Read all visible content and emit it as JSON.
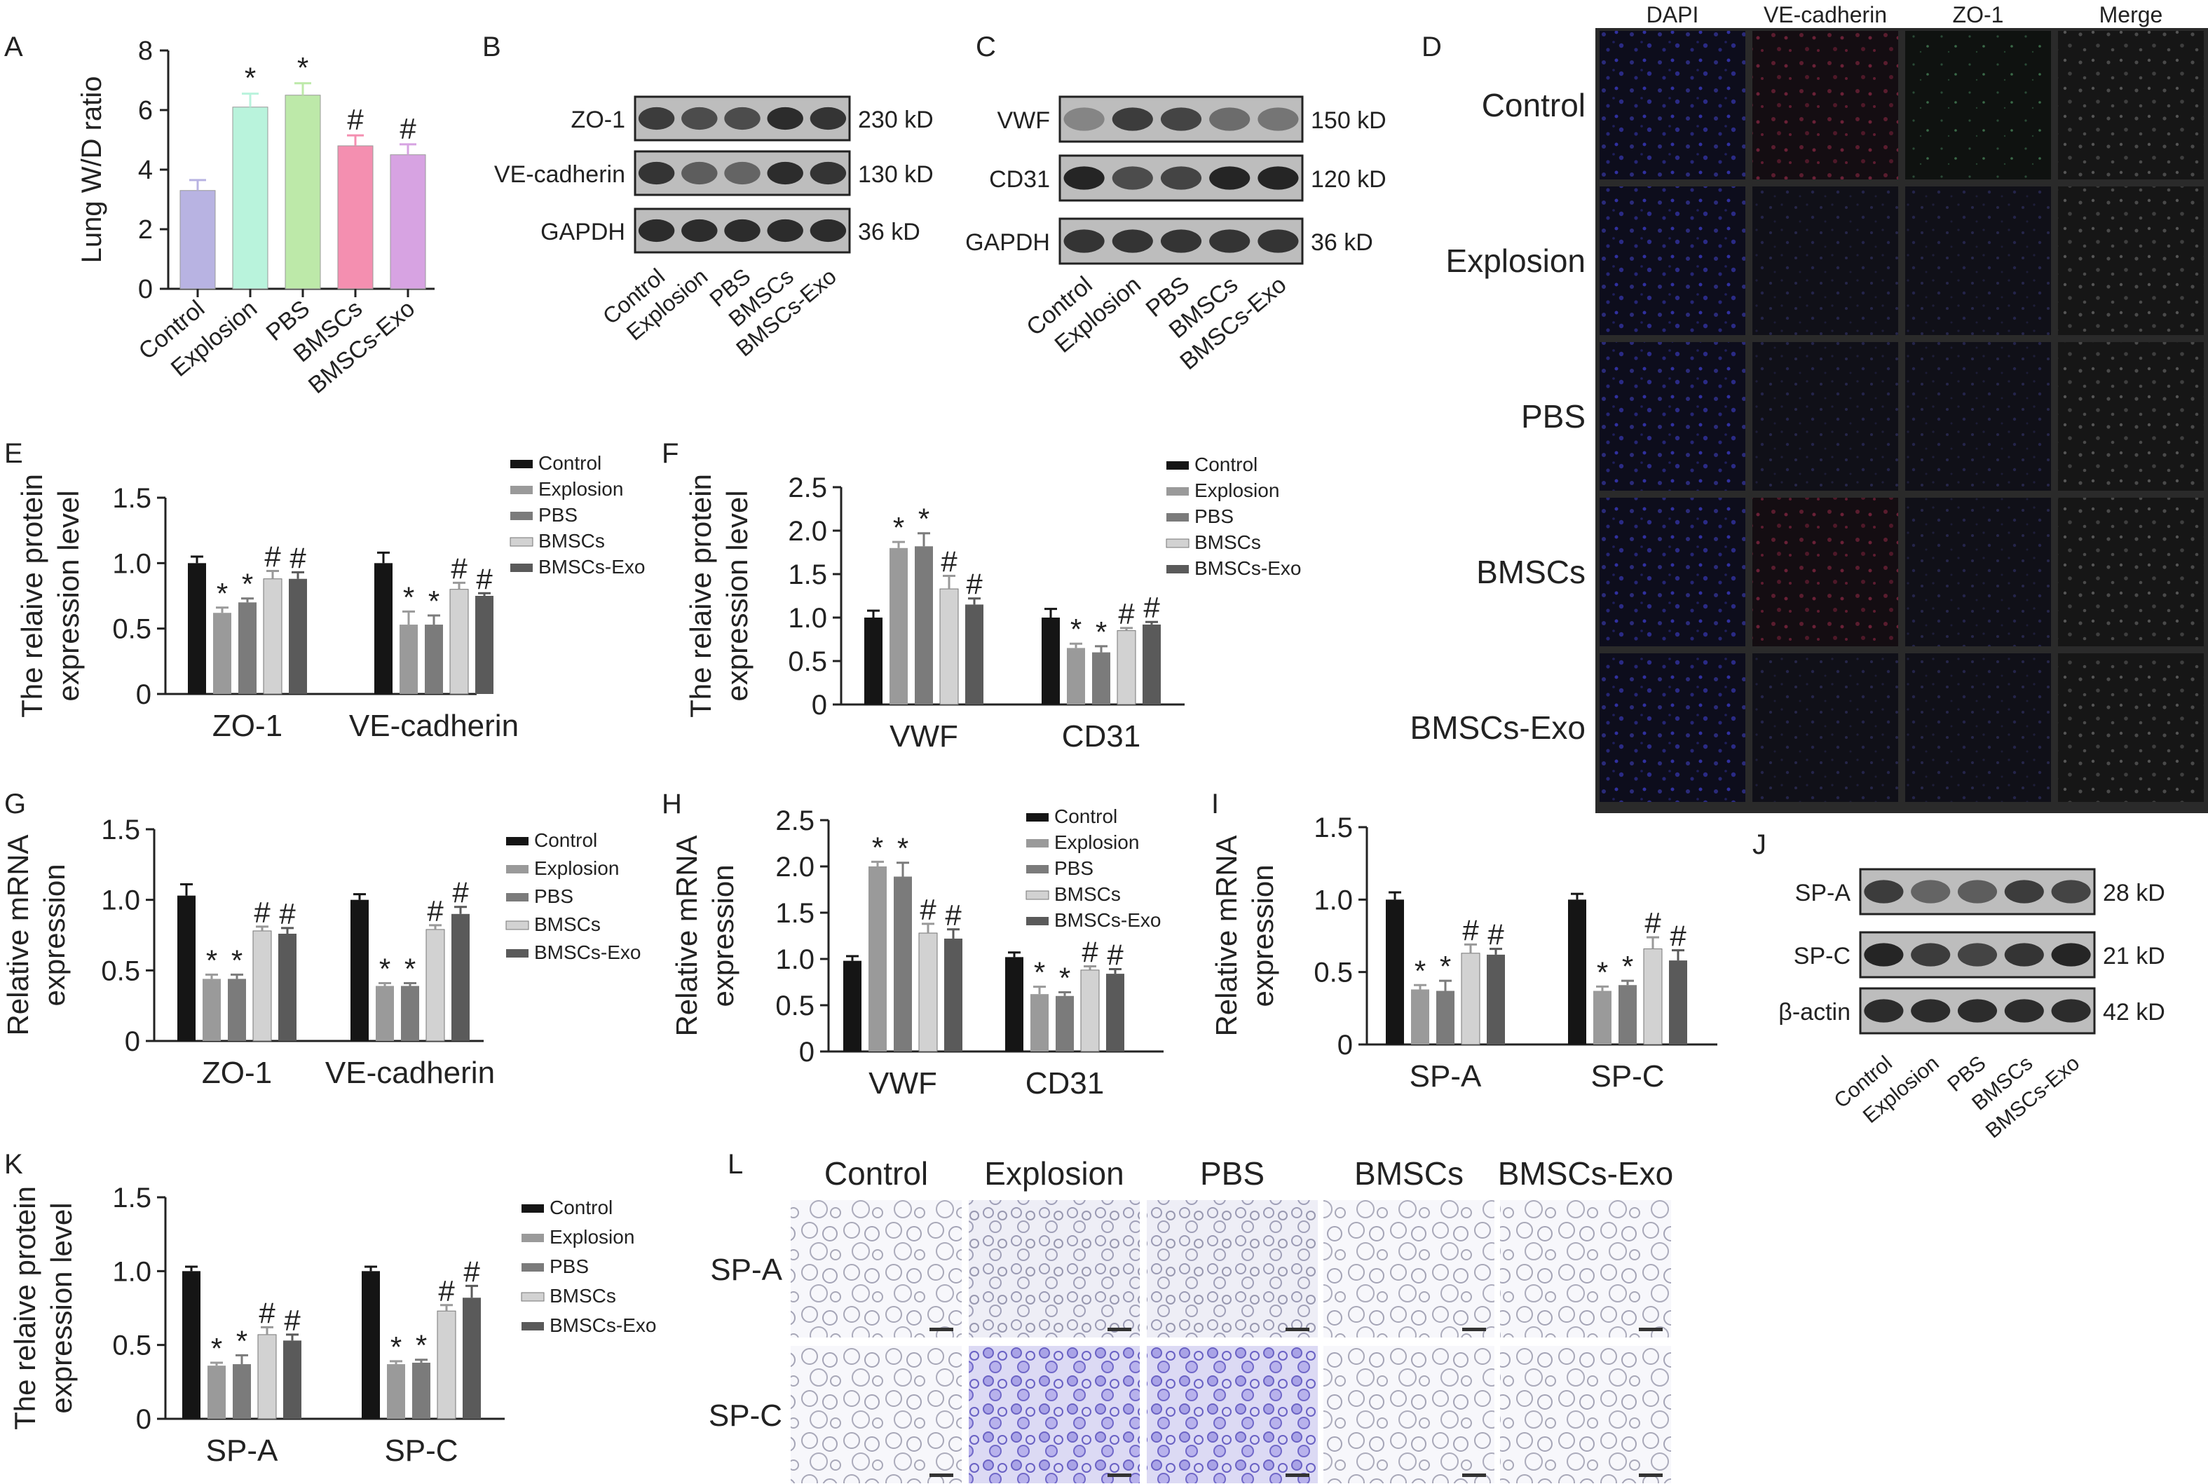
{
  "panel_letters": [
    "A",
    "B",
    "C",
    "D",
    "E",
    "F",
    "G",
    "H",
    "I",
    "J",
    "K",
    "L"
  ],
  "groups": [
    "Control",
    "Explosion",
    "PBS",
    "BMSCs",
    "BMSCs-Exo"
  ],
  "colors": {
    "panelA": [
      "#b8b3e2",
      "#b9f3dc",
      "#bde9a9",
      "#f48fb0",
      "#d7a3e2"
    ],
    "gray5": [
      "#151515",
      "#9a9a9a",
      "#7b7b7b",
      "#d2d2d2",
      "#5a5a5a"
    ],
    "blot_band": "#1c1c1c",
    "blot_bg": "#bdbdbd"
  },
  "chart_data": [
    {
      "id": "A",
      "type": "bar",
      "categories": [
        "Control",
        "Explosion",
        "PBS",
        "BMSCs",
        "BMSCs-Exo"
      ],
      "values": [
        3.3,
        6.1,
        6.5,
        4.8,
        4.5
      ],
      "errors": [
        0.35,
        0.45,
        0.4,
        0.35,
        0.35
      ],
      "marks": [
        "",
        "*",
        "*",
        "#",
        "#"
      ],
      "ylabel": "Lung W/D ratio",
      "ylim": [
        0,
        8
      ],
      "yticks": [
        "0",
        "2",
        "4",
        "6",
        "8"
      ]
    },
    {
      "id": "E",
      "type": "bar",
      "categories": [
        "ZO-1",
        "VE-cadherin"
      ],
      "series": [
        {
          "name": "Control",
          "values": [
            1.0,
            1.0
          ],
          "errors": [
            0.05,
            0.08
          ]
        },
        {
          "name": "Explosion",
          "values": [
            0.62,
            0.53
          ],
          "errors": [
            0.04,
            0.1
          ]
        },
        {
          "name": "PBS",
          "values": [
            0.7,
            0.53
          ],
          "errors": [
            0.03,
            0.07
          ]
        },
        {
          "name": "BMSCs",
          "values": [
            0.88,
            0.8
          ],
          "errors": [
            0.06,
            0.05
          ]
        },
        {
          "name": "BMSCs-Exo",
          "values": [
            0.88,
            0.75
          ],
          "errors": [
            0.05,
            0.02
          ]
        }
      ],
      "marks": [
        [
          "",
          "*",
          "*",
          "#",
          "#"
        ],
        [
          "",
          "*",
          "*",
          "#",
          "#"
        ]
      ],
      "ylabel": [
        "The relaive protein",
        "expression level"
      ],
      "ylim": [
        0,
        1.5
      ],
      "yticks": [
        "0",
        "0.5",
        "1.0",
        "1.5"
      ]
    },
    {
      "id": "F",
      "type": "bar",
      "categories": [
        "VWF",
        "CD31"
      ],
      "series": [
        {
          "name": "Control",
          "values": [
            1.0,
            1.0
          ],
          "errors": [
            0.08,
            0.1
          ]
        },
        {
          "name": "Explosion",
          "values": [
            1.8,
            0.65
          ],
          "errors": [
            0.07,
            0.05
          ]
        },
        {
          "name": "PBS",
          "values": [
            1.82,
            0.6
          ],
          "errors": [
            0.15,
            0.07
          ]
        },
        {
          "name": "BMSCs",
          "values": [
            1.33,
            0.85
          ],
          "errors": [
            0.15,
            0.03
          ]
        },
        {
          "name": "BMSCs-Exo",
          "values": [
            1.15,
            0.92
          ],
          "errors": [
            0.07,
            0.03
          ]
        }
      ],
      "marks": [
        [
          "",
          "*",
          "*",
          "#",
          "#"
        ],
        [
          "",
          "*",
          "*",
          "#",
          "#"
        ]
      ],
      "ylabel": [
        "The relaive protein",
        "expression level"
      ],
      "ylim": [
        0,
        2.5
      ],
      "yticks": [
        "0",
        "0.5",
        "1.0",
        "1.5",
        "2.0",
        "2.5"
      ]
    },
    {
      "id": "G",
      "type": "bar",
      "categories": [
        "ZO-1",
        "VE-cadherin"
      ],
      "series": [
        {
          "name": "Control",
          "values": [
            1.03,
            1.0
          ],
          "errors": [
            0.08,
            0.04
          ]
        },
        {
          "name": "Explosion",
          "values": [
            0.44,
            0.39
          ],
          "errors": [
            0.03,
            0.02
          ]
        },
        {
          "name": "PBS",
          "values": [
            0.44,
            0.39
          ],
          "errors": [
            0.03,
            0.02
          ]
        },
        {
          "name": "BMSCs",
          "values": [
            0.78,
            0.79
          ],
          "errors": [
            0.03,
            0.03
          ]
        },
        {
          "name": "BMSCs-Exo",
          "values": [
            0.76,
            0.9
          ],
          "errors": [
            0.04,
            0.05
          ]
        }
      ],
      "marks": [
        [
          "",
          "*",
          "*",
          "#",
          "#"
        ],
        [
          "",
          "*",
          "*",
          "#",
          "#"
        ]
      ],
      "ylabel": [
        "Relative mRNA",
        "expression"
      ],
      "ylim": [
        0,
        1.5
      ],
      "yticks": [
        "0",
        "0.5",
        "1.0",
        "1.5"
      ]
    },
    {
      "id": "H",
      "type": "bar",
      "categories": [
        "VWF",
        "CD31"
      ],
      "series": [
        {
          "name": "Control",
          "values": [
            0.98,
            1.02
          ],
          "errors": [
            0.05,
            0.05
          ]
        },
        {
          "name": "Explosion",
          "values": [
            2.0,
            0.62
          ],
          "errors": [
            0.05,
            0.08
          ]
        },
        {
          "name": "PBS",
          "values": [
            1.89,
            0.6
          ],
          "errors": [
            0.15,
            0.04
          ]
        },
        {
          "name": "BMSCs",
          "values": [
            1.28,
            0.88
          ],
          "errors": [
            0.1,
            0.04
          ]
        },
        {
          "name": "BMSCs-Exo",
          "values": [
            1.22,
            0.84
          ],
          "errors": [
            0.1,
            0.05
          ]
        }
      ],
      "marks": [
        [
          "",
          "*",
          "*",
          "#",
          "#"
        ],
        [
          "",
          "*",
          "*",
          "#",
          "#"
        ]
      ],
      "ylabel": [
        "Relative mRNA",
        "expression"
      ],
      "ylim": [
        0,
        2.5
      ],
      "yticks": [
        "0",
        "0.5",
        "1.0",
        "1.5",
        "2.0",
        "2.5"
      ]
    },
    {
      "id": "I",
      "type": "bar",
      "categories": [
        "SP-A",
        "SP-C"
      ],
      "series": [
        {
          "name": "Control",
          "values": [
            1.0,
            1.0
          ],
          "errors": [
            0.05,
            0.04
          ]
        },
        {
          "name": "Explosion",
          "values": [
            0.38,
            0.37
          ],
          "errors": [
            0.03,
            0.03
          ]
        },
        {
          "name": "PBS",
          "values": [
            0.37,
            0.41
          ],
          "errors": [
            0.07,
            0.03
          ]
        },
        {
          "name": "BMSCs",
          "values": [
            0.63,
            0.66
          ],
          "errors": [
            0.06,
            0.08
          ]
        },
        {
          "name": "BMSCs-Exo",
          "values": [
            0.62,
            0.58
          ],
          "errors": [
            0.04,
            0.07
          ]
        }
      ],
      "marks": [
        [
          "",
          "*",
          "*",
          "#",
          "#"
        ],
        [
          "",
          "*",
          "*",
          "#",
          "#"
        ]
      ],
      "ylabel": [
        "Relative mRNA",
        "expression"
      ],
      "ylim": [
        0,
        1.5
      ],
      "yticks": [
        "0",
        "0.5",
        "1.0",
        "1.5"
      ]
    },
    {
      "id": "K",
      "type": "bar",
      "categories": [
        "SP-A",
        "SP-C"
      ],
      "series": [
        {
          "name": "Control",
          "values": [
            1.0,
            1.0
          ],
          "errors": [
            0.03,
            0.03
          ]
        },
        {
          "name": "Explosion",
          "values": [
            0.36,
            0.37
          ],
          "errors": [
            0.02,
            0.02
          ]
        },
        {
          "name": "PBS",
          "values": [
            0.37,
            0.38
          ],
          "errors": [
            0.06,
            0.02
          ]
        },
        {
          "name": "BMSCs",
          "values": [
            0.57,
            0.73
          ],
          "errors": [
            0.05,
            0.04
          ]
        },
        {
          "name": "BMSCs-Exo",
          "values": [
            0.53,
            0.82
          ],
          "errors": [
            0.04,
            0.08
          ]
        }
      ],
      "marks": [
        [
          "",
          "*",
          "*",
          "#",
          "#"
        ],
        [
          "",
          "*",
          "*",
          "#",
          "#"
        ]
      ],
      "ylabel": [
        "The relaive protein",
        "expression level"
      ],
      "ylim": [
        0,
        1.5
      ],
      "yticks": [
        "0",
        "0.5",
        "1.0",
        "1.5"
      ]
    }
  ],
  "blots": {
    "B": {
      "rows": [
        {
          "label": "ZO-1",
          "size": "230 kD",
          "intensity": [
            0.8,
            0.7,
            0.7,
            0.9,
            0.85
          ]
        },
        {
          "label": "VE-cadherin",
          "size": "130 kD",
          "intensity": [
            0.85,
            0.6,
            0.55,
            0.9,
            0.85
          ]
        },
        {
          "label": "GAPDH",
          "size": "36 kD",
          "intensity": [
            0.9,
            0.9,
            0.9,
            0.9,
            0.9
          ]
        }
      ]
    },
    "C": {
      "rows": [
        {
          "label": "VWF",
          "size": "150 kD",
          "intensity": [
            0.35,
            0.8,
            0.75,
            0.5,
            0.45
          ]
        },
        {
          "label": "CD31",
          "size": "120 kD",
          "intensity": [
            0.95,
            0.7,
            0.75,
            0.95,
            0.95
          ]
        },
        {
          "label": "GAPDH",
          "size": "36 kD",
          "intensity": [
            0.85,
            0.85,
            0.85,
            0.85,
            0.85
          ]
        }
      ]
    },
    "J": {
      "rows": [
        {
          "label": "SP-A",
          "size": "28 kD",
          "intensity": [
            0.8,
            0.55,
            0.6,
            0.8,
            0.75
          ]
        },
        {
          "label": "SP-C",
          "size": "21 kD",
          "intensity": [
            0.95,
            0.8,
            0.75,
            0.85,
            0.95
          ]
        },
        {
          "label": "β-actin",
          "size": "42 kD",
          "intensity": [
            0.9,
            0.9,
            0.9,
            0.9,
            0.9
          ]
        }
      ]
    }
  },
  "panel_D": {
    "columns": [
      "DAPI",
      "VE-cadherin",
      "ZO-1",
      "Merge"
    ],
    "rows": [
      "Control",
      "Explosion",
      "PBS",
      "BMSCs",
      "BMSCs-Exo"
    ]
  },
  "panel_L": {
    "columns": [
      "Control",
      "Explosion",
      "PBS",
      "BMSCs",
      "BMSCs-Exo"
    ],
    "rows": [
      "SP-A",
      "SP-C"
    ]
  }
}
